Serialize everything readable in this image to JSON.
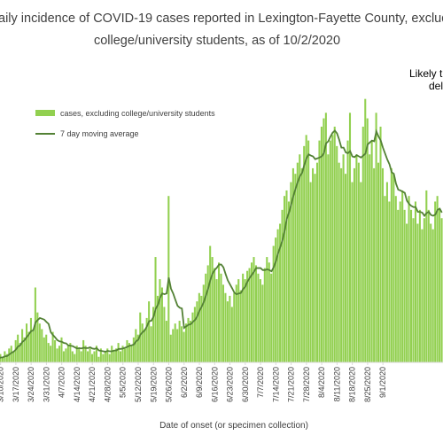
{
  "chart_data": {
    "type": "bar",
    "title_lines": [
      "aily incidence of COVID-19 cases reported in Lexington-Fayette County, excluding",
      "college/university students, as of 10/2/2020"
    ],
    "xlabel": "Date of onset (or specimen collection)",
    "ylabel": "",
    "ylim": [
      0,
      100
    ],
    "grid": false,
    "legend_position": "top-left",
    "colors": {
      "bars": "#92d050",
      "line": "#538135"
    },
    "annotation_lines": [
      "Likely t",
      "del"
    ],
    "x_start": "2020-03-07",
    "x_tick_labels": [
      "3/10/2020",
      "3/17/2020",
      "3/24/2020",
      "3/31/2020",
      "4/7/2020",
      "4/14/2020",
      "4/21/2020",
      "4/28/2020",
      "5/5/2020",
      "5/12/2020",
      "5/19/2020",
      "5/26/2020",
      "6/2/2020",
      "6/9/2020",
      "6/16/2020",
      "6/23/2020",
      "6/30/2020",
      "7/7/2020",
      "7/14/2020",
      "7/21/2020",
      "7/28/2020",
      "8/4/2020",
      "8/11/2020",
      "8/18/2020",
      "8/25/2020",
      "9/1/2020"
    ],
    "series": [
      {
        "name": "cases, excluding college/university students",
        "type": "bar",
        "values": [
          1,
          2,
          1,
          3,
          2,
          4,
          3,
          5,
          6,
          4,
          8,
          10,
          7,
          12,
          9,
          14,
          11,
          16,
          12,
          27,
          18,
          14,
          12,
          9,
          10,
          7,
          6,
          11,
          8,
          5,
          6,
          9,
          4,
          5,
          6,
          7,
          4,
          3,
          6,
          5,
          4,
          8,
          6,
          4,
          5,
          3,
          4,
          6,
          2,
          5,
          3,
          4,
          5,
          3,
          6,
          4,
          5,
          7,
          4,
          6,
          5,
          8,
          7,
          6,
          9,
          12,
          10,
          18,
          14,
          12,
          16,
          22,
          13,
          20,
          38,
          24,
          30,
          27,
          20,
          15,
          60,
          10,
          12,
          14,
          12,
          15,
          13,
          11,
          14,
          16,
          15,
          18,
          20,
          22,
          25,
          24,
          28,
          32,
          35,
          42,
          38,
          34,
          30,
          36,
          32,
          28,
          25,
          22,
          24,
          20,
          25,
          28,
          30,
          26,
          32,
          30,
          33,
          34,
          36,
          38,
          35,
          32,
          30,
          28,
          34,
          38,
          36,
          32,
          42,
          45,
          48,
          50,
          55,
          60,
          62,
          58,
          65,
          70,
          68,
          72,
          75,
          70,
          78,
          82,
          80,
          65,
          70,
          68,
          72,
          80,
          85,
          88,
          90,
          75,
          80,
          82,
          85,
          78,
          72,
          70,
          75,
          68,
          80,
          90,
          65,
          70,
          75,
          72,
          65,
          85,
          95,
          88,
          75,
          80,
          70,
          90,
          72,
          85,
          70,
          60,
          65,
          58,
          70,
          68,
          60,
          55,
          58,
          62,
          55,
          50,
          60,
          55,
          52,
          58,
          50,
          55,
          48,
          52,
          62,
          55,
          50,
          48,
          58,
          60,
          55,
          52
        ]
      },
      {
        "name": "7 day moving average",
        "type": "line"
      }
    ]
  }
}
